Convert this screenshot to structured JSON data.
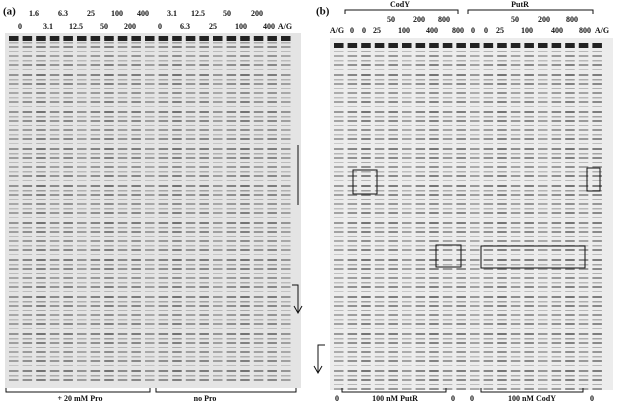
{
  "panel_a": {
    "label": "(a)",
    "top_row": [
      "1.6",
      "6.3",
      "25",
      "100",
      "400",
      "3.1",
      "12.5",
      "50",
      "200"
    ],
    "bottom_row": [
      "0",
      "3.1",
      "12.5",
      "50",
      "200",
      "0",
      "6.3",
      "25",
      "100",
      "400",
      "A/G"
    ],
    "footer": [
      "+ 20 mM Pro",
      "no Pro"
    ]
  },
  "panel_b": {
    "label": "(b)",
    "groups": [
      "CodY",
      "PutR"
    ],
    "top_row": [
      "50",
      "200",
      "800",
      "50",
      "200",
      "800"
    ],
    "bottom_row": [
      "A/G",
      "0",
      "0",
      "25",
      "100",
      "400",
      "800",
      "0",
      "0",
      "25",
      "100",
      "400",
      "800",
      "A/G"
    ],
    "footer": [
      "0",
      "100 nM PutR",
      "0",
      "0",
      "100 nM CodY",
      "0"
    ]
  }
}
